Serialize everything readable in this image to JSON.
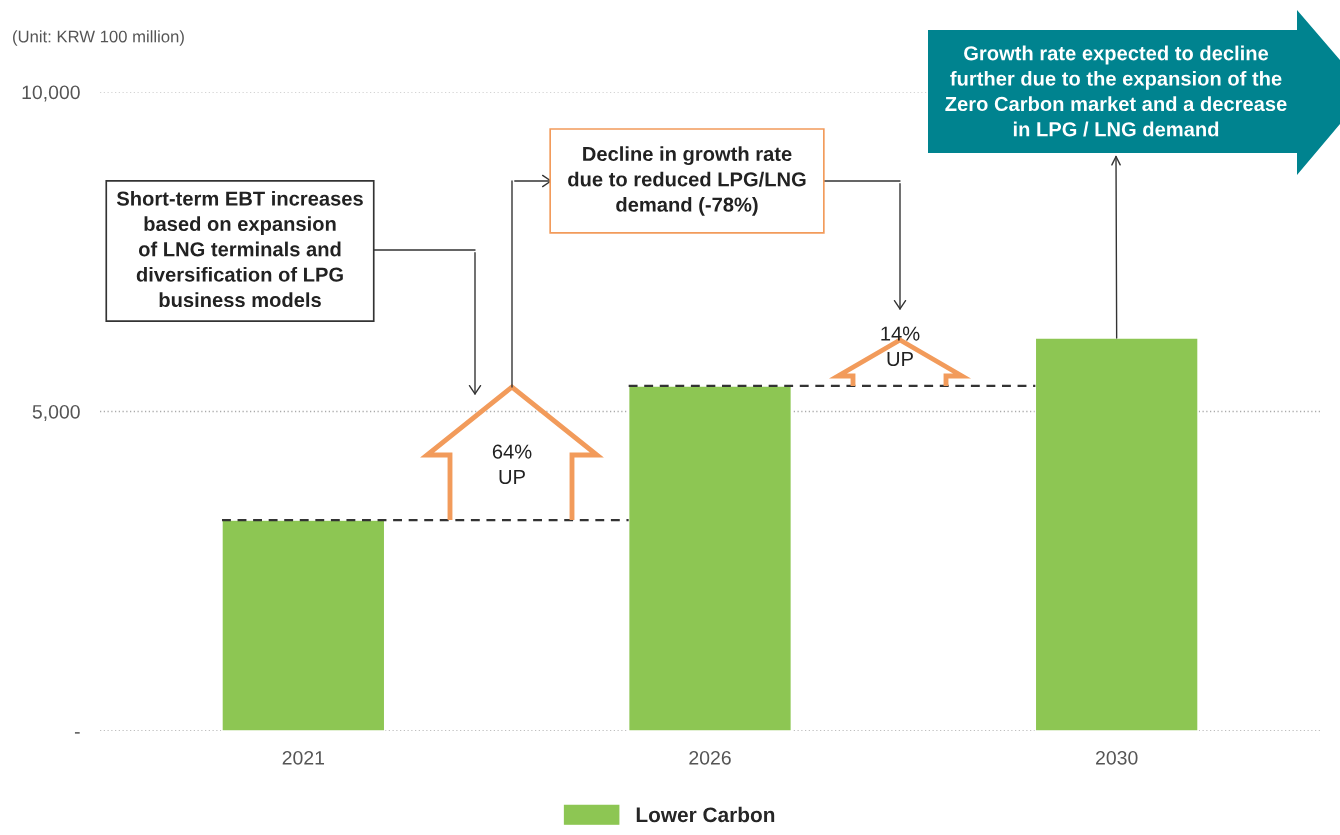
{
  "chart_data": {
    "type": "bar",
    "categories": [
      "2021",
      "2026",
      "2030"
    ],
    "series": [
      {
        "name": "Lower Carbon",
        "color": "#8dc653",
        "values": [
          3300,
          5400,
          6150
        ]
      }
    ],
    "ylim": [
      0,
      10000
    ],
    "yticks": [
      {
        "value": 0,
        "label": "-"
      },
      {
        "value": 5000,
        "label": "5,000"
      },
      {
        "value": 10000,
        "label": "10,000"
      }
    ],
    "grid": "y",
    "legend": "bottom",
    "ref_lines": [
      {
        "axis": "y",
        "value": 3300,
        "color": "#333333",
        "line_style": "dashed"
      },
      {
        "axis": "y",
        "value": 5400,
        "color": "#333333",
        "line_style": "dashed"
      }
    ],
    "annotations": [
      "(Unit: KRW 100 million)",
      "Short-term EBT increases\nbased on expansion\nof LNG terminals and\ndiversification of LPG\nbusiness models",
      "Decline in growth rate\ndue to reduced LPG/LNG\ndemand (-78%)",
      {
        "text": "Growth rate expected to decline\nfurther due to the expansion of the\nZero Carbon market and a decrease\nin LPG / LNG demand",
        "x": "2030",
        "y": 6150
      },
      "64%\nUP",
      "14%\nUP"
    ]
  }
}
